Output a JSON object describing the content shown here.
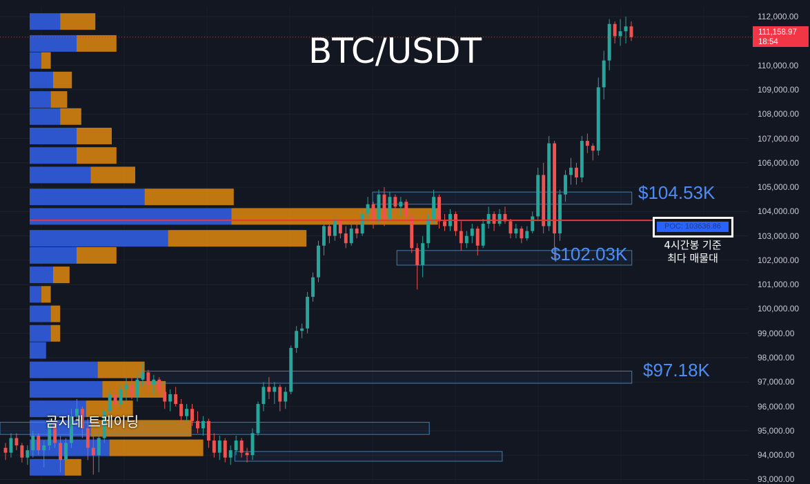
{
  "title": "BTC/USDT",
  "watermark": "곰지네 트레이딩",
  "last_price": {
    "value": "111,158.97",
    "countdown": "18:54",
    "y": 111158.97,
    "color": "#f23645"
  },
  "poc": {
    "label": "POC: 103636.86",
    "value": 103636.86,
    "color": "#2962ff",
    "annotation": [
      "4시간봉 기준",
      "최다 매물대"
    ]
  },
  "levels": [
    {
      "label": "$104.53K",
      "value": 104530
    },
    {
      "label": "$102.03K",
      "value": 102030
    },
    {
      "label": "$97.18K",
      "value": 97180
    }
  ],
  "colors": {
    "background": "#131722",
    "up": "#26a69a",
    "down": "#ef5350",
    "vp_up": "#2e5ad6",
    "vp_down": "#d4820f",
    "zone": "#4a90c8",
    "poc_line": "#e53935"
  },
  "chart_data": {
    "type": "candlestick",
    "title": "BTC/USDT",
    "ylim": [
      92900,
      112400
    ],
    "y_ticks": [
      {
        "value": 112000,
        "label": "112,000.00"
      },
      {
        "value": 110000,
        "label": "110,000.00"
      },
      {
        "value": 109000,
        "label": "109,000.00"
      },
      {
        "value": 108000,
        "label": "108,000.00"
      },
      {
        "value": 107000,
        "label": "107,000.00"
      },
      {
        "value": 106000,
        "label": "106,000.00"
      },
      {
        "value": 105000,
        "label": "105,000.00"
      },
      {
        "value": 104000,
        "label": "104,000.00"
      },
      {
        "value": 103000,
        "label": "103,000.00"
      },
      {
        "value": 102000,
        "label": "102,000.00"
      },
      {
        "value": 101000,
        "label": "101,000.00"
      },
      {
        "value": 100000,
        "label": "100,000.00"
      },
      {
        "value": 99000,
        "label": "99,000.00"
      },
      {
        "value": 98000,
        "label": "98,000.00"
      },
      {
        "value": 97000,
        "label": "97,000.00"
      },
      {
        "value": 96000,
        "label": "96,000.00"
      },
      {
        "value": 95000,
        "label": "95,000.00"
      },
      {
        "value": 94000,
        "label": "94,000.00"
      },
      {
        "value": 93000,
        "label": "93,000.00"
      }
    ],
    "candles_ohlc": [
      [
        94300,
        94500,
        93800,
        94100
      ],
      [
        94100,
        94900,
        93900,
        94700
      ],
      [
        94700,
        94900,
        94200,
        94400
      ],
      [
        94400,
        94500,
        93700,
        93900
      ],
      [
        93900,
        94400,
        93600,
        94200
      ],
      [
        94200,
        95000,
        93900,
        94800
      ],
      [
        94800,
        94900,
        94000,
        94200
      ],
      [
        94200,
        94600,
        93500,
        94400
      ],
      [
        94400,
        95500,
        94200,
        95300
      ],
      [
        95300,
        95600,
        94300,
        94500
      ],
      [
        94500,
        94800,
        93300,
        93800
      ],
      [
        93800,
        94700,
        93600,
        94500
      ],
      [
        94500,
        95900,
        94300,
        95600
      ],
      [
        95600,
        96300,
        95200,
        95900
      ],
      [
        95900,
        96000,
        94700,
        95100
      ],
      [
        95100,
        95500,
        93800,
        94300
      ],
      [
        94300,
        94800,
        93200,
        94000
      ],
      [
        94000,
        94900,
        93300,
        94700
      ],
      [
        94700,
        95900,
        94500,
        95800
      ],
      [
        95800,
        96700,
        95500,
        96500
      ],
      [
        96500,
        96800,
        95800,
        96100
      ],
      [
        96100,
        96900,
        95900,
        96700
      ],
      [
        96700,
        97200,
        96200,
        96900
      ],
      [
        96900,
        97200,
        96300,
        96400
      ],
      [
        96400,
        97300,
        96200,
        97100
      ],
      [
        97100,
        97800,
        96800,
        97400
      ],
      [
        97400,
        97500,
        96600,
        96900
      ],
      [
        96900,
        97300,
        96500,
        97100
      ],
      [
        97100,
        97200,
        96400,
        96600
      ],
      [
        96600,
        96900,
        95900,
        96200
      ],
      [
        96200,
        96700,
        95800,
        96500
      ],
      [
        96500,
        96800,
        96000,
        96100
      ],
      [
        96100,
        96300,
        95300,
        95600
      ],
      [
        95600,
        96100,
        95400,
        95900
      ],
      [
        95900,
        96100,
        95200,
        95400
      ],
      [
        95400,
        95800,
        94900,
        95100
      ],
      [
        95100,
        95600,
        94800,
        95400
      ],
      [
        95400,
        95500,
        94300,
        94600
      ],
      [
        94600,
        94900,
        93900,
        94100
      ],
      [
        94100,
        94800,
        93800,
        94600
      ],
      [
        94600,
        94700,
        93700,
        93900
      ],
      [
        93900,
        94400,
        93600,
        94200
      ],
      [
        94200,
        94800,
        94000,
        94600
      ],
      [
        94600,
        94700,
        93900,
        94100
      ],
      [
        94100,
        94300,
        93700,
        94000
      ],
      [
        94000,
        95100,
        93800,
        94900
      ],
      [
        94900,
        96200,
        94800,
        96100
      ],
      [
        96100,
        97000,
        95800,
        96800
      ],
      [
        96800,
        97200,
        96300,
        96600
      ],
      [
        96600,
        97000,
        96100,
        96800
      ],
      [
        96800,
        96900,
        95800,
        96200
      ],
      [
        96200,
        96800,
        95900,
        96600
      ],
      [
        96600,
        98500,
        96500,
        98400
      ],
      [
        98400,
        99300,
        98200,
        99100
      ],
      [
        99100,
        99400,
        98800,
        99200
      ],
      [
        99200,
        100700,
        99000,
        100500
      ],
      [
        100500,
        101500,
        100300,
        101300
      ],
      [
        101300,
        102800,
        101100,
        102600
      ],
      [
        102600,
        103600,
        102200,
        103400
      ],
      [
        103400,
        103700,
        102700,
        103000
      ],
      [
        103000,
        103900,
        102800,
        103700
      ],
      [
        103700,
        103800,
        102900,
        103100
      ],
      [
        103100,
        103400,
        102500,
        102700
      ],
      [
        102700,
        103500,
        102600,
        103300
      ],
      [
        103300,
        103600,
        102900,
        103100
      ],
      [
        103100,
        104100,
        103000,
        103900
      ],
      [
        103900,
        104600,
        103500,
        104300
      ],
      [
        104300,
        104400,
        103300,
        103600
      ],
      [
        103600,
        104900,
        103500,
        104700
      ],
      [
        104700,
        105000,
        103400,
        103700
      ],
      [
        103700,
        104800,
        103600,
        104600
      ],
      [
        104600,
        104700,
        103900,
        104200
      ],
      [
        104200,
        104600,
        103800,
        104400
      ],
      [
        104400,
        104500,
        103500,
        103800
      ],
      [
        103800,
        103900,
        102300,
        102500
      ],
      [
        102500,
        102700,
        100800,
        101800
      ],
      [
        101800,
        103000,
        101300,
        102700
      ],
      [
        102700,
        103900,
        102500,
        103700
      ],
      [
        103700,
        104900,
        103500,
        104600
      ],
      [
        104600,
        104700,
        103300,
        103600
      ],
      [
        103600,
        103900,
        103200,
        103400
      ],
      [
        103400,
        104100,
        103200,
        103900
      ],
      [
        103900,
        104000,
        103000,
        103200
      ],
      [
        103200,
        103600,
        102400,
        102700
      ],
      [
        102700,
        103200,
        102500,
        103000
      ],
      [
        103000,
        103500,
        102700,
        103300
      ],
      [
        103300,
        103400,
        102200,
        102600
      ],
      [
        102600,
        103700,
        102500,
        103500
      ],
      [
        103500,
        104200,
        103300,
        103900
      ],
      [
        103900,
        104000,
        103200,
        103500
      ],
      [
        103500,
        104100,
        103400,
        103900
      ],
      [
        103900,
        104200,
        103500,
        103600
      ],
      [
        103600,
        103700,
        102900,
        103100
      ],
      [
        103100,
        103500,
        102900,
        103300
      ],
      [
        103300,
        103400,
        102700,
        102900
      ],
      [
        102900,
        103400,
        102800,
        103200
      ],
      [
        103200,
        104000,
        103100,
        103800
      ],
      [
        103800,
        105800,
        103600,
        105500
      ],
      [
        105500,
        106000,
        103100,
        103400
      ],
      [
        103400,
        107100,
        103200,
        106800
      ],
      [
        106800,
        106900,
        102000,
        103100
      ],
      [
        103100,
        104900,
        102800,
        104700
      ],
      [
        104700,
        105700,
        104400,
        105500
      ],
      [
        105500,
        106200,
        105100,
        105800
      ],
      [
        105800,
        106000,
        105100,
        105400
      ],
      [
        105400,
        107100,
        105200,
        106900
      ],
      [
        106900,
        107200,
        106400,
        106700
      ],
      [
        106700,
        106800,
        106100,
        106500
      ],
      [
        106500,
        109500,
        106300,
        109100
      ],
      [
        109100,
        110600,
        108600,
        110200
      ],
      [
        110200,
        111900,
        109800,
        111700
      ],
      [
        111700,
        111800,
        110900,
        111200
      ],
      [
        111200,
        111900,
        110800,
        111400
      ],
      [
        111400,
        112000,
        110900,
        111600
      ],
      [
        111600,
        111800,
        111000,
        111159
      ]
    ],
    "volume_profile": [
      {
        "price": 111800,
        "up": 0.13,
        "down": 0.15
      },
      {
        "price": 110900,
        "up": 0.2,
        "down": 0.17
      },
      {
        "price": 110200,
        "up": 0.05,
        "down": 0.04
      },
      {
        "price": 109400,
        "up": 0.1,
        "down": 0.08
      },
      {
        "price": 108600,
        "up": 0.09,
        "down": 0.07
      },
      {
        "price": 107900,
        "up": 0.13,
        "down": 0.09
      },
      {
        "price": 107100,
        "up": 0.2,
        "down": 0.15
      },
      {
        "price": 106300,
        "up": 0.2,
        "down": 0.17
      },
      {
        "price": 105500,
        "up": 0.26,
        "down": 0.19
      },
      {
        "price": 104600,
        "up": 0.49,
        "down": 0.38
      },
      {
        "price": 103800,
        "up": 0.86,
        "down": 0.88
      },
      {
        "price": 102900,
        "up": 0.59,
        "down": 0.59
      },
      {
        "price": 102200,
        "up": 0.2,
        "down": 0.17
      },
      {
        "price": 101400,
        "up": 0.1,
        "down": 0.07
      },
      {
        "price": 100600,
        "up": 0.05,
        "down": 0.04
      },
      {
        "price": 99800,
        "up": 0.09,
        "down": 0.04
      },
      {
        "price": 99000,
        "up": 0.09,
        "down": 0.04
      },
      {
        "price": 98300,
        "up": 0.07,
        "down": 0.0
      },
      {
        "price": 97500,
        "up": 0.29,
        "down": 0.2
      },
      {
        "price": 96700,
        "up": 0.31,
        "down": 0.27
      },
      {
        "price": 95900,
        "up": 0.24,
        "down": 0.2
      },
      {
        "price": 95100,
        "up": 0.26,
        "down": 0.43
      },
      {
        "price": 94300,
        "up": 0.34,
        "down": 0.4
      },
      {
        "price": 93500,
        "up": 0.15,
        "down": 0.07
      }
    ],
    "zones": [
      {
        "y0": 104300,
        "y1": 104800,
        "x0": 0.46,
        "x1": 0.78
      },
      {
        "y0": 101800,
        "y1": 102400,
        "x0": 0.49,
        "x1": 0.78
      },
      {
        "y0": 96950,
        "y1": 97450,
        "x0": 0.17,
        "x1": 0.78
      },
      {
        "y0": 94850,
        "y1": 95350,
        "x0": 0.0,
        "x1": 0.53
      },
      {
        "y0": 93750,
        "y1": 94150,
        "x0": 0.29,
        "x1": 0.62
      }
    ]
  }
}
